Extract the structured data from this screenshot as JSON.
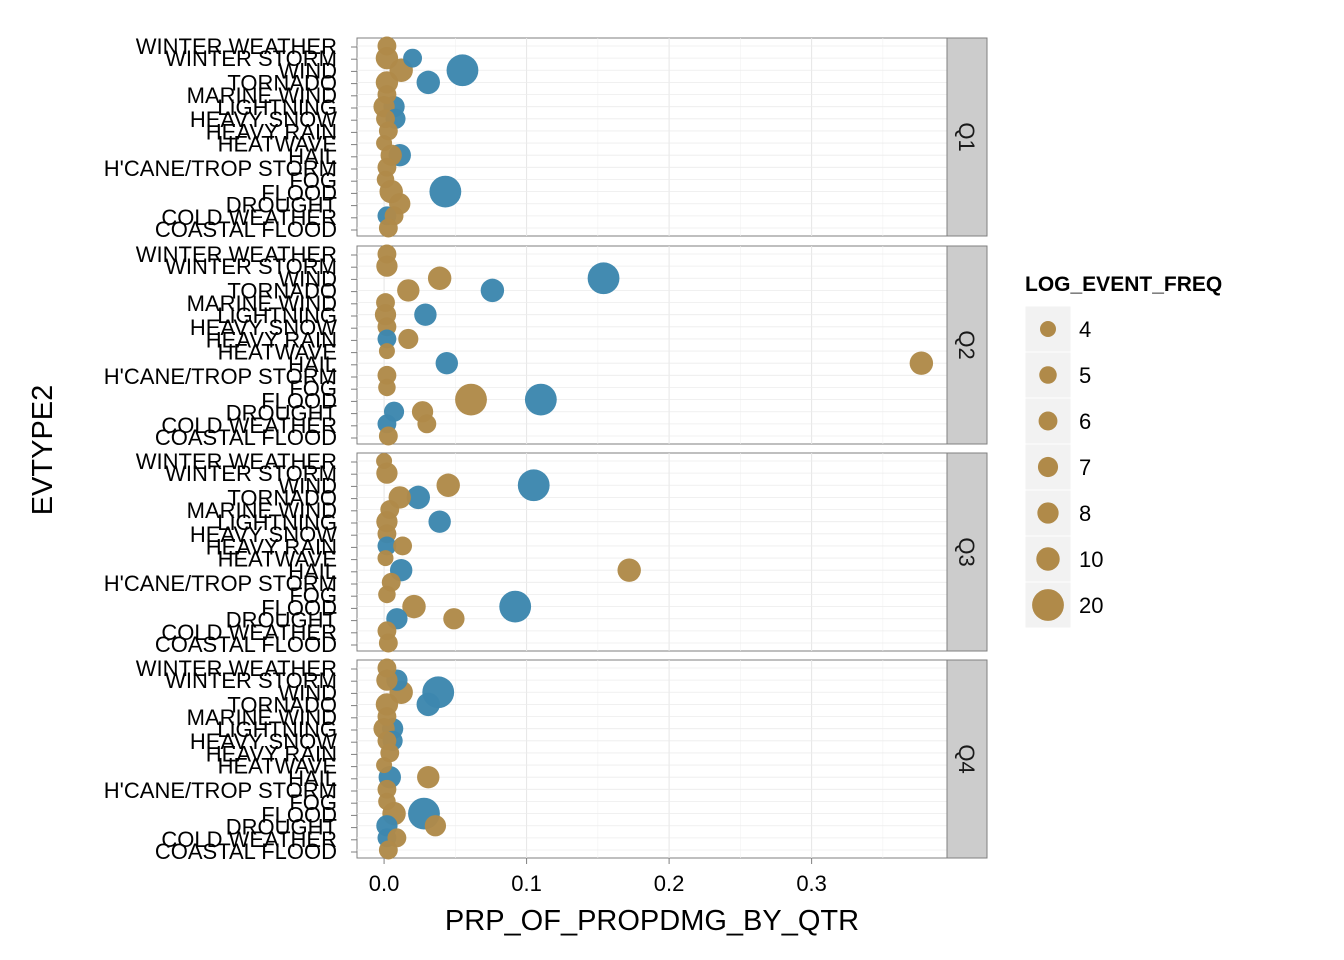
{
  "chart_data": {
    "type": "scatter",
    "title": "",
    "xlabel": "PRP_OF_PROPDMG_BY_QTR",
    "ylabel": "EVTYPE2",
    "xlim": [
      -0.019,
      0.395
    ],
    "x_ticks": [
      "0.0",
      "0.1",
      "0.2",
      "0.3"
    ],
    "x_tick_values": [
      0,
      0.1,
      0.2,
      0.3
    ],
    "grid": true,
    "legend_placement": "right",
    "categories": [
      "WINTER WEATHER",
      "WINTER STORM",
      "WIND",
      "TORNADO",
      "MARINE WIND",
      "LIGHTNING",
      "HEAVY SNOW",
      "HEAVY RAIN",
      "HEATWAVE",
      "HAIL",
      "H'CANE/TROP STORM",
      "FOG",
      "FLOOD",
      "DROUGHT",
      "COLD WEATHER",
      "COASTAL FLOOD"
    ],
    "colors": {
      "blue": "#3d87ae",
      "tan": "#b08a49"
    },
    "legend": {
      "title": "LOG_EVENT_FREQ",
      "entries": [
        {
          "label": "4",
          "size": 4
        },
        {
          "label": "5",
          "size": 5
        },
        {
          "label": "6",
          "size": 6
        },
        {
          "label": "7",
          "size": 7
        },
        {
          "label": "8",
          "size": 8
        },
        {
          "label": "10",
          "size": 10
        },
        {
          "label": "20",
          "size": 20
        }
      ]
    },
    "facets": [
      {
        "label": "Q1",
        "points": [
          {
            "category": "WINTER WEATHER",
            "x": 0.002,
            "size": 6,
            "color": "tan"
          },
          {
            "category": "WINTER STORM",
            "x": 0.02,
            "size": 6,
            "color": "blue"
          },
          {
            "category": "WINTER STORM",
            "x": 0.002,
            "size": 9,
            "color": "tan"
          },
          {
            "category": "WIND",
            "x": 0.055,
            "size": 20,
            "color": "blue"
          },
          {
            "category": "WIND",
            "x": 0.012,
            "size": 10,
            "color": "tan"
          },
          {
            "category": "TORNADO",
            "x": 0.031,
            "size": 10,
            "color": "blue"
          },
          {
            "category": "TORNADO",
            "x": 0.002,
            "size": 9,
            "color": "tan"
          },
          {
            "category": "MARINE WIND",
            "x": 0.002,
            "size": 6,
            "color": "tan"
          },
          {
            "category": "LIGHTNING",
            "x": 0.007,
            "size": 8,
            "color": "blue"
          },
          {
            "category": "LIGHTNING",
            "x": 0.0,
            "size": 8,
            "color": "tan"
          },
          {
            "category": "HEAVY SNOW",
            "x": 0.008,
            "size": 7,
            "color": "blue"
          },
          {
            "category": "HEAVY SNOW",
            "x": 0.001,
            "size": 6,
            "color": "tan"
          },
          {
            "category": "HEAVY RAIN",
            "x": 0.003,
            "size": 6,
            "color": "tan"
          },
          {
            "category": "HEATWAVE",
            "x": 0.0,
            "size": 4,
            "color": "tan"
          },
          {
            "category": "HAIL",
            "x": 0.011,
            "size": 9,
            "color": "blue"
          },
          {
            "category": "HAIL",
            "x": 0.005,
            "size": 8,
            "color": "tan"
          },
          {
            "category": "H'CANE/TROP STORM",
            "x": 0.002,
            "size": 6,
            "color": "tan"
          },
          {
            "category": "FOG",
            "x": 0.001,
            "size": 5,
            "color": "tan"
          },
          {
            "category": "FLOOD",
            "x": 0.043,
            "size": 20,
            "color": "blue"
          },
          {
            "category": "FLOOD",
            "x": 0.005,
            "size": 10,
            "color": "tan"
          },
          {
            "category": "DROUGHT",
            "x": 0.011,
            "size": 8,
            "color": "tan"
          },
          {
            "category": "COLD WEATHER",
            "x": 0.002,
            "size": 6,
            "color": "blue"
          },
          {
            "category": "COLD WEATHER",
            "x": 0.007,
            "size": 6,
            "color": "tan"
          },
          {
            "category": "COASTAL FLOOD",
            "x": 0.003,
            "size": 6,
            "color": "tan"
          }
        ]
      },
      {
        "label": "Q2",
        "points": [
          {
            "category": "WINTER WEATHER",
            "x": 0.002,
            "size": 6,
            "color": "tan"
          },
          {
            "category": "WINTER STORM",
            "x": 0.002,
            "size": 8,
            "color": "tan"
          },
          {
            "category": "WIND",
            "x": 0.154,
            "size": 20,
            "color": "blue"
          },
          {
            "category": "WIND",
            "x": 0.039,
            "size": 10,
            "color": "tan"
          },
          {
            "category": "TORNADO",
            "x": 0.076,
            "size": 10,
            "color": "blue"
          },
          {
            "category": "TORNADO",
            "x": 0.017,
            "size": 9,
            "color": "tan"
          },
          {
            "category": "MARINE WIND",
            "x": 0.001,
            "size": 6,
            "color": "tan"
          },
          {
            "category": "LIGHTNING",
            "x": 0.029,
            "size": 9,
            "color": "blue"
          },
          {
            "category": "LIGHTNING",
            "x": 0.001,
            "size": 8,
            "color": "tan"
          },
          {
            "category": "HEAVY SNOW",
            "x": 0.002,
            "size": 6,
            "color": "tan"
          },
          {
            "category": "HEAVY RAIN",
            "x": 0.002,
            "size": 6,
            "color": "blue"
          },
          {
            "category": "HEAVY RAIN",
            "x": 0.017,
            "size": 7,
            "color": "tan"
          },
          {
            "category": "HEATWAVE",
            "x": 0.002,
            "size": 4,
            "color": "tan"
          },
          {
            "category": "HAIL",
            "x": 0.044,
            "size": 9,
            "color": "blue"
          },
          {
            "category": "HAIL",
            "x": 0.377,
            "size": 10,
            "color": "tan"
          },
          {
            "category": "H'CANE/TROP STORM",
            "x": 0.002,
            "size": 6,
            "color": "tan"
          },
          {
            "category": "FOG",
            "x": 0.002,
            "size": 5,
            "color": "tan"
          },
          {
            "category": "FLOOD",
            "x": 0.11,
            "size": 20,
            "color": "blue"
          },
          {
            "category": "FLOOD",
            "x": 0.061,
            "size": 20,
            "color": "tan"
          },
          {
            "category": "DROUGHT",
            "x": 0.007,
            "size": 7,
            "color": "blue"
          },
          {
            "category": "DROUGHT",
            "x": 0.027,
            "size": 8,
            "color": "tan"
          },
          {
            "category": "COLD WEATHER",
            "x": 0.002,
            "size": 6,
            "color": "blue"
          },
          {
            "category": "COLD WEATHER",
            "x": 0.03,
            "size": 6,
            "color": "tan"
          },
          {
            "category": "COASTAL FLOOD",
            "x": 0.003,
            "size": 6,
            "color": "tan"
          }
        ]
      },
      {
        "label": "Q3",
        "points": [
          {
            "category": "WINTER WEATHER",
            "x": 0.0,
            "size": 4,
            "color": "tan"
          },
          {
            "category": "WINTER STORM",
            "x": 0.002,
            "size": 8,
            "color": "tan"
          },
          {
            "category": "WIND",
            "x": 0.105,
            "size": 20,
            "color": "blue"
          },
          {
            "category": "WIND",
            "x": 0.045,
            "size": 10,
            "color": "tan"
          },
          {
            "category": "TORNADO",
            "x": 0.024,
            "size": 10,
            "color": "blue"
          },
          {
            "category": "TORNADO",
            "x": 0.011,
            "size": 9,
            "color": "tan"
          },
          {
            "category": "MARINE WIND",
            "x": 0.004,
            "size": 6,
            "color": "tan"
          },
          {
            "category": "LIGHTNING",
            "x": 0.039,
            "size": 9,
            "color": "blue"
          },
          {
            "category": "LIGHTNING",
            "x": 0.002,
            "size": 8,
            "color": "tan"
          },
          {
            "category": "HEAVY SNOW",
            "x": 0.002,
            "size": 6,
            "color": "tan"
          },
          {
            "category": "HEAVY RAIN",
            "x": 0.002,
            "size": 6,
            "color": "blue"
          },
          {
            "category": "HEAVY RAIN",
            "x": 0.013,
            "size": 6,
            "color": "tan"
          },
          {
            "category": "HEATWAVE",
            "x": 0.001,
            "size": 4,
            "color": "tan"
          },
          {
            "category": "HAIL",
            "x": 0.012,
            "size": 9,
            "color": "blue"
          },
          {
            "category": "HAIL",
            "x": 0.172,
            "size": 10,
            "color": "tan"
          },
          {
            "category": "H'CANE/TROP STORM",
            "x": 0.005,
            "size": 6,
            "color": "tan"
          },
          {
            "category": "FOG",
            "x": 0.002,
            "size": 5,
            "color": "tan"
          },
          {
            "category": "FLOOD",
            "x": 0.092,
            "size": 20,
            "color": "blue"
          },
          {
            "category": "FLOOD",
            "x": 0.021,
            "size": 10,
            "color": "tan"
          },
          {
            "category": "DROUGHT",
            "x": 0.009,
            "size": 8,
            "color": "blue"
          },
          {
            "category": "DROUGHT",
            "x": 0.049,
            "size": 8,
            "color": "tan"
          },
          {
            "category": "COLD WEATHER",
            "x": 0.002,
            "size": 6,
            "color": "tan"
          },
          {
            "category": "COASTAL FLOOD",
            "x": 0.003,
            "size": 6,
            "color": "tan"
          }
        ]
      },
      {
        "label": "Q4",
        "points": [
          {
            "category": "WINTER WEATHER",
            "x": 0.002,
            "size": 6,
            "color": "tan"
          },
          {
            "category": "WINTER STORM",
            "x": 0.009,
            "size": 8,
            "color": "blue"
          },
          {
            "category": "WINTER STORM",
            "x": 0.002,
            "size": 8,
            "color": "tan"
          },
          {
            "category": "WIND",
            "x": 0.038,
            "size": 20,
            "color": "blue"
          },
          {
            "category": "WIND",
            "x": 0.012,
            "size": 10,
            "color": "tan"
          },
          {
            "category": "TORNADO",
            "x": 0.031,
            "size": 10,
            "color": "blue"
          },
          {
            "category": "TORNADO",
            "x": 0.002,
            "size": 9,
            "color": "tan"
          },
          {
            "category": "MARINE WIND",
            "x": 0.002,
            "size": 6,
            "color": "tan"
          },
          {
            "category": "LIGHTNING",
            "x": 0.006,
            "size": 8,
            "color": "blue"
          },
          {
            "category": "LIGHTNING",
            "x": 0.0,
            "size": 8,
            "color": "tan"
          },
          {
            "category": "HEAVY SNOW",
            "x": 0.006,
            "size": 7,
            "color": "blue"
          },
          {
            "category": "HEAVY SNOW",
            "x": 0.002,
            "size": 6,
            "color": "tan"
          },
          {
            "category": "HEAVY RAIN",
            "x": 0.004,
            "size": 6,
            "color": "tan"
          },
          {
            "category": "HEATWAVE",
            "x": 0.0,
            "size": 4,
            "color": "tan"
          },
          {
            "category": "HAIL",
            "x": 0.004,
            "size": 9,
            "color": "blue"
          },
          {
            "category": "HAIL",
            "x": 0.031,
            "size": 9,
            "color": "tan"
          },
          {
            "category": "H'CANE/TROP STORM",
            "x": 0.002,
            "size": 6,
            "color": "tan"
          },
          {
            "category": "FOG",
            "x": 0.002,
            "size": 5,
            "color": "tan"
          },
          {
            "category": "FLOOD",
            "x": 0.028,
            "size": 20,
            "color": "blue"
          },
          {
            "category": "FLOOD",
            "x": 0.007,
            "size": 10,
            "color": "tan"
          },
          {
            "category": "DROUGHT",
            "x": 0.002,
            "size": 8,
            "color": "blue"
          },
          {
            "category": "DROUGHT",
            "x": 0.036,
            "size": 8,
            "color": "tan"
          },
          {
            "category": "COLD WEATHER",
            "x": 0.002,
            "size": 6,
            "color": "blue"
          },
          {
            "category": "COLD WEATHER",
            "x": 0.009,
            "size": 6,
            "color": "tan"
          },
          {
            "category": "COASTAL FLOOD",
            "x": 0.003,
            "size": 6,
            "color": "tan"
          }
        ]
      }
    ]
  }
}
